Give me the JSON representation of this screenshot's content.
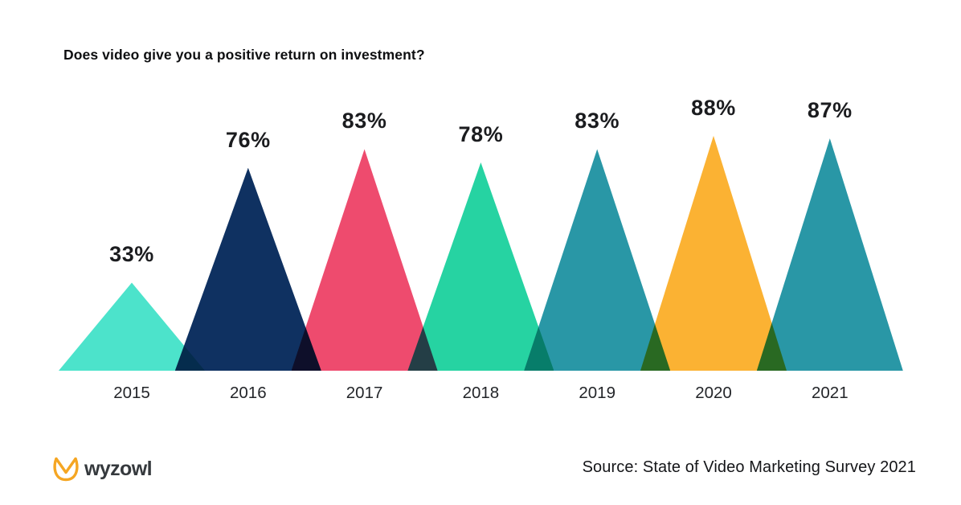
{
  "page": {
    "background": "#ffffff"
  },
  "title": "Does video give you a positive return on investment?",
  "chart_data": {
    "type": "bar",
    "shape": "triangle",
    "title": "Does video give you a positive return on investment?",
    "categories": [
      "2015",
      "2016",
      "2017",
      "2018",
      "2019",
      "2020",
      "2021"
    ],
    "values": [
      33,
      76,
      83,
      78,
      83,
      88,
      87
    ],
    "value_labels": [
      "33%",
      "76%",
      "83%",
      "78%",
      "83%",
      "88%",
      "87%"
    ],
    "colors": [
      "#4CE3CB",
      "#0F3161",
      "#EE4B6E",
      "#26D3A2",
      "#2997A6",
      "#FBB233",
      "#2997A6"
    ],
    "value_suffix": "%",
    "ylim": [
      0,
      100
    ],
    "xlabel": "",
    "ylabel": "",
    "grid": "off",
    "legend": "none",
    "overlap_blend": "multiply"
  },
  "footer": {
    "logo_icon": "wyzowl-owl-logo-icon",
    "logo_icon_color": "#F5A623",
    "logo_text": "wyzowl",
    "source": "Source: State of Video Marketing Survey 2021"
  }
}
